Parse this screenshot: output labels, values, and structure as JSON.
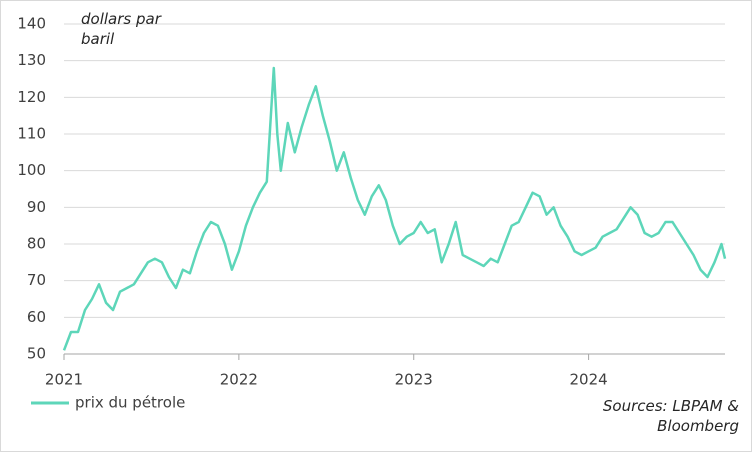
{
  "chart_data": {
    "type": "line",
    "unit_label": "dollars par baril",
    "source": "Sources: LBPAM & Bloomberg",
    "x": [
      2021.0,
      2021.04,
      2021.08,
      2021.12,
      2021.16,
      2021.2,
      2021.24,
      2021.28,
      2021.32,
      2021.36,
      2021.4,
      2021.44,
      2021.48,
      2021.52,
      2021.56,
      2021.6,
      2021.64,
      2021.68,
      2021.72,
      2021.76,
      2021.8,
      2021.84,
      2021.88,
      2021.92,
      2021.96,
      2022.0,
      2022.04,
      2022.08,
      2022.12,
      2022.16,
      2022.2,
      2022.22,
      2022.24,
      2022.28,
      2022.32,
      2022.36,
      2022.4,
      2022.44,
      2022.48,
      2022.52,
      2022.56,
      2022.6,
      2022.64,
      2022.68,
      2022.72,
      2022.76,
      2022.8,
      2022.84,
      2022.88,
      2022.92,
      2022.96,
      2023.0,
      2023.04,
      2023.08,
      2023.12,
      2023.16,
      2023.2,
      2023.24,
      2023.28,
      2023.32,
      2023.36,
      2023.4,
      2023.44,
      2023.48,
      2023.52,
      2023.56,
      2023.6,
      2023.64,
      2023.68,
      2023.72,
      2023.76,
      2023.8,
      2023.84,
      2023.88,
      2023.92,
      2023.96,
      2024.0,
      2024.04,
      2024.08,
      2024.12,
      2024.16,
      2024.2,
      2024.24,
      2024.28,
      2024.32,
      2024.36,
      2024.4,
      2024.44,
      2024.48,
      2024.52,
      2024.56,
      2024.6,
      2024.64,
      2024.68,
      2024.72,
      2024.76,
      2024.78
    ],
    "series": [
      {
        "name": "prix du pétrole",
        "color": "#5dd6b9",
        "values": [
          51,
          56,
          56,
          62,
          65,
          69,
          64,
          62,
          67,
          68,
          69,
          72,
          75,
          76,
          75,
          71,
          68,
          73,
          72,
          78,
          83,
          86,
          85,
          80,
          73,
          78,
          85,
          90,
          94,
          97,
          128,
          110,
          100,
          113,
          105,
          112,
          118,
          123,
          115,
          108,
          100,
          105,
          98,
          92,
          88,
          93,
          96,
          92,
          85,
          80,
          82,
          83,
          86,
          83,
          84,
          75,
          80,
          86,
          77,
          76,
          75,
          74,
          76,
          75,
          80,
          85,
          86,
          90,
          94,
          93,
          88,
          90,
          85,
          82,
          78,
          77,
          78,
          79,
          82,
          83,
          84,
          87,
          90,
          88,
          83,
          82,
          83,
          86,
          86,
          83,
          80,
          77,
          73,
          71,
          75,
          80,
          76
        ]
      }
    ],
    "xlim": [
      2021,
      2024.78
    ],
    "xticks": [
      2021,
      2022,
      2023,
      2024
    ],
    "ylim": [
      50,
      140
    ],
    "yticks": [
      50,
      60,
      70,
      80,
      90,
      100,
      110,
      120,
      130,
      140
    ],
    "grid": true,
    "legend": "bottom-left"
  }
}
